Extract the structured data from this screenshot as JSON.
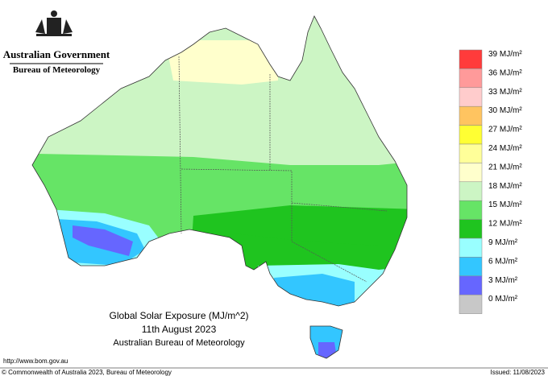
{
  "header": {
    "government": "Australian Government",
    "agency": "Bureau of Meteorology"
  },
  "map": {
    "title": "Global Solar Exposure (MJ/m^2)",
    "date": "11th August 2023",
    "source": "Australian Bureau of Meteorology"
  },
  "legend": {
    "items": [
      {
        "label": "39 MJ/m²",
        "color": "#ff3b3b"
      },
      {
        "label": "36 MJ/m²",
        "color": "#ff9a9a"
      },
      {
        "label": "33 MJ/m²",
        "color": "#ffcccc"
      },
      {
        "label": "30 MJ/m²",
        "color": "#ffc460"
      },
      {
        "label": "27 MJ/m²",
        "color": "#ffff33"
      },
      {
        "label": "24 MJ/m²",
        "color": "#ffff99"
      },
      {
        "label": "21 MJ/m²",
        "color": "#ffffcc"
      },
      {
        "label": "18 MJ/m²",
        "color": "#ccf5c4"
      },
      {
        "label": "15 MJ/m²",
        "color": "#66e466"
      },
      {
        "label": "12 MJ/m²",
        "color": "#1fc41f"
      },
      {
        "label": "9 MJ/m²",
        "color": "#99ffff"
      },
      {
        "label": "6 MJ/m²",
        "color": "#33c6ff"
      },
      {
        "label": "3 MJ/m²",
        "color": "#6666ff"
      },
      {
        "label": "0 MJ/m²",
        "color": "#c8c8c8"
      }
    ]
  },
  "footer": {
    "url": "http://www.bom.gov.au",
    "copyright": "© Commonwealth of Australia 2023, Bureau of Meteorology",
    "issued": "Issued: 11/08/2023"
  }
}
